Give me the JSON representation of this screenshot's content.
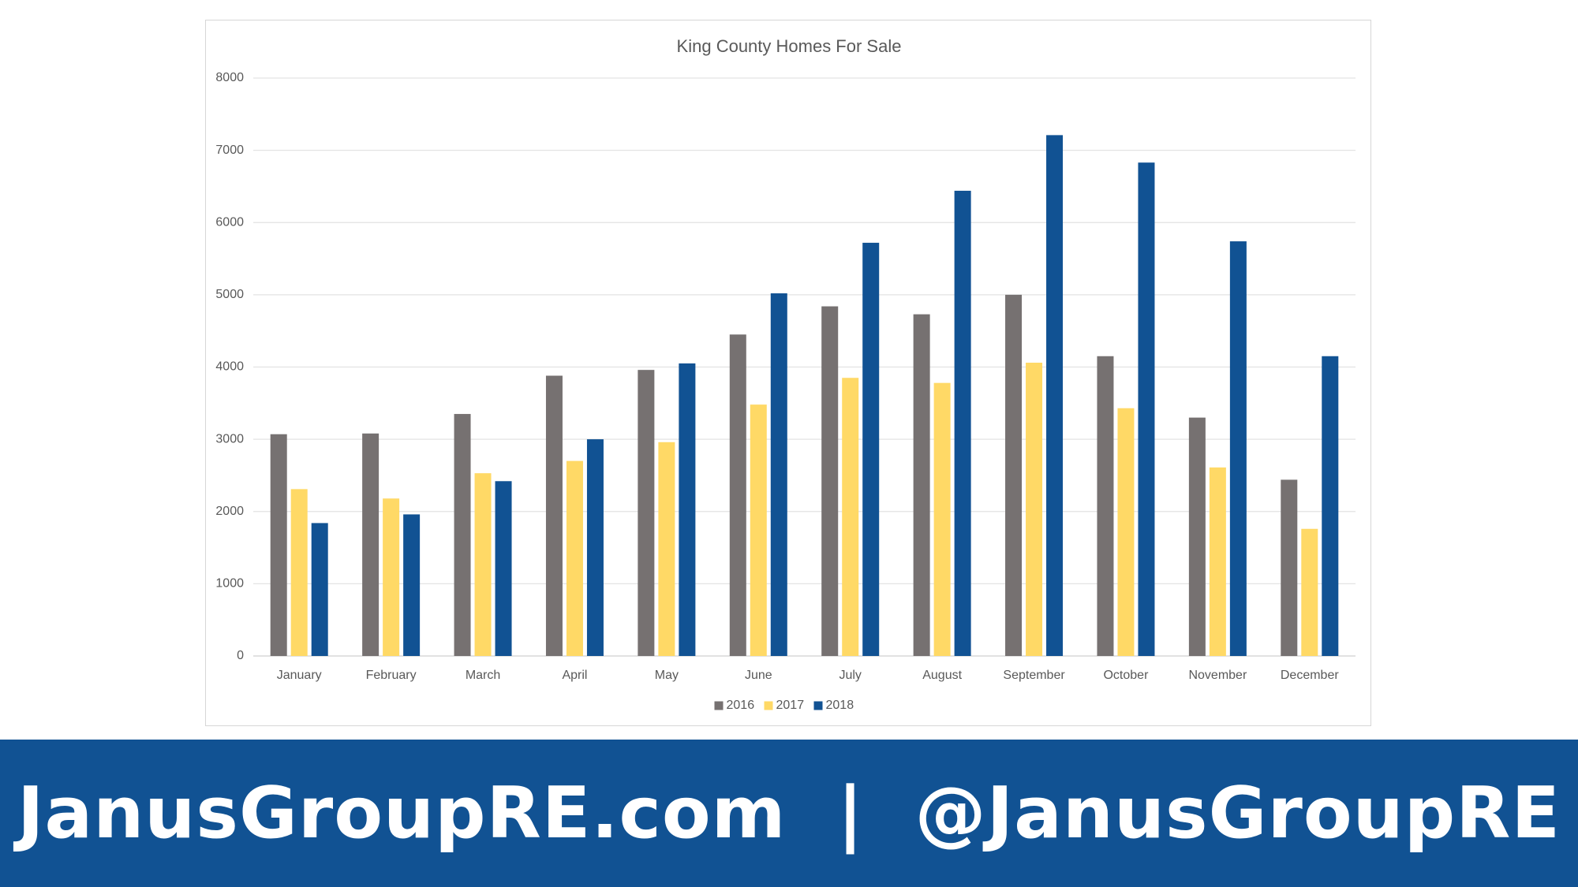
{
  "chart_data": {
    "type": "bar",
    "title": "King County Homes For Sale",
    "xlabel": "",
    "ylabel": "",
    "categories": [
      "January",
      "February",
      "March",
      "April",
      "May",
      "June",
      "July",
      "August",
      "September",
      "October",
      "November",
      "December"
    ],
    "series": [
      {
        "name": "2016",
        "color": "#767171",
        "values": [
          3070,
          3080,
          3350,
          3880,
          3960,
          4450,
          4840,
          4730,
          5000,
          4150,
          3300,
          2440
        ]
      },
      {
        "name": "2017",
        "color": "#FFD966",
        "values": [
          2310,
          2180,
          2530,
          2700,
          2960,
          3480,
          3850,
          3780,
          4060,
          3430,
          2610,
          1760
        ]
      },
      {
        "name": "2018",
        "color": "#115293",
        "values": [
          1840,
          1960,
          2420,
          3000,
          4050,
          5020,
          5720,
          6440,
          7210,
          6830,
          5740,
          4150
        ]
      }
    ],
    "ylim": [
      0,
      8000
    ],
    "yticks": [
      0,
      1000,
      2000,
      3000,
      4000,
      5000,
      6000,
      7000,
      8000
    ],
    "grid": true,
    "legend_position": "bottom"
  },
  "footer": {
    "text": "JanusGroupRE.com  |  @JanusGroupRE"
  }
}
